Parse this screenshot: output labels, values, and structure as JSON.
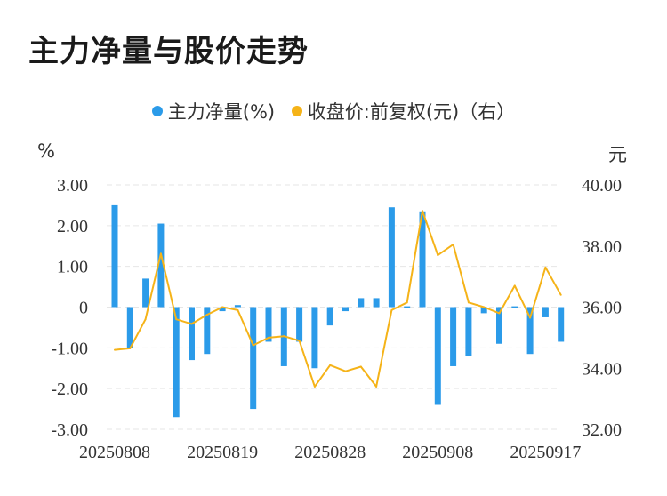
{
  "title": "主力净量与股价走势",
  "legend": {
    "series1": "主力净量(%)",
    "series2": "收盘价:前复权(元)（右）"
  },
  "colors": {
    "bar": "#2b9be9",
    "line": "#f5b318",
    "grid": "#e6e6e6"
  },
  "chart_data": {
    "type": "bar+line",
    "left_unit": "%",
    "right_unit": "元",
    "left_ylim": [
      -3,
      3
    ],
    "right_ylim": [
      32,
      40
    ],
    "left_ticks": [
      "3.00",
      "2.00",
      "1.00",
      "0",
      "-1.00",
      "-2.00",
      "-3.00"
    ],
    "right_ticks": [
      "40.00",
      "38.00",
      "36.00",
      "34.00",
      "32.00"
    ],
    "x_tick_labels": [
      "20250808",
      "20250819",
      "20250828",
      "20250908",
      "20250917"
    ],
    "x_tick_indices": [
      0,
      7,
      14,
      21,
      28
    ],
    "series": [
      {
        "name": "主力净量(%)",
        "kind": "bar",
        "values": [
          2.5,
          -1.0,
          0.7,
          2.05,
          -2.7,
          -1.3,
          -1.15,
          -0.1,
          0.05,
          -2.5,
          -0.85,
          -1.45,
          -0.85,
          -1.5,
          -0.45,
          -0.1,
          0.22,
          0.22,
          2.45,
          0.02,
          2.35,
          -2.4,
          -1.45,
          -1.2,
          -0.15,
          -0.9,
          0.02,
          -1.15,
          -0.25,
          -0.85
        ]
      },
      {
        "name": "收盘价:前复权(元)（右）",
        "kind": "line",
        "axis": "right",
        "values": [
          34.6,
          34.65,
          35.6,
          37.75,
          35.6,
          35.45,
          35.75,
          36.0,
          35.9,
          34.75,
          35.0,
          35.05,
          34.9,
          33.4,
          34.1,
          33.9,
          34.05,
          33.4,
          35.9,
          36.15,
          39.15,
          37.7,
          38.05,
          36.15,
          36.0,
          35.8,
          36.7,
          35.65,
          37.3,
          36.4
        ]
      }
    ]
  }
}
